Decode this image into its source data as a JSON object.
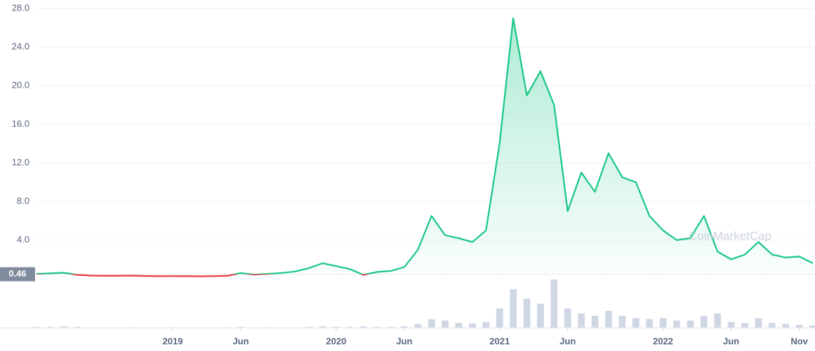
{
  "chart_data": {
    "type": "line",
    "x": [
      "2018-03",
      "2018-04",
      "2018-05",
      "2018-06",
      "2018-07",
      "2018-08",
      "2018-09",
      "2018-10",
      "2018-11",
      "2018-12",
      "2019-01",
      "2019-02",
      "2019-03",
      "2019-04",
      "2019-05",
      "2019-06",
      "2019-07",
      "2019-08",
      "2019-09",
      "2019-10",
      "2019-11",
      "2019-12",
      "2020-01",
      "2020-02",
      "2020-03",
      "2020-04",
      "2020-05",
      "2020-06",
      "2020-07",
      "2020-08",
      "2020-09",
      "2020-10",
      "2020-11",
      "2020-12",
      "2021-01",
      "2021-02",
      "2021-03",
      "2021-04",
      "2021-05",
      "2021-06",
      "2021-07",
      "2021-08",
      "2021-09",
      "2021-10",
      "2021-11",
      "2021-12",
      "2022-01",
      "2022-02",
      "2022-03",
      "2022-04",
      "2022-05",
      "2022-06",
      "2022-07",
      "2022-08",
      "2022-09",
      "2022-10",
      "2022-11",
      "2022-12"
    ],
    "values": [
      0.5,
      0.55,
      0.62,
      0.4,
      0.32,
      0.3,
      0.3,
      0.32,
      0.28,
      0.26,
      0.27,
      0.26,
      0.25,
      0.27,
      0.3,
      0.58,
      0.42,
      0.5,
      0.6,
      0.75,
      1.1,
      1.6,
      1.3,
      1.0,
      0.4,
      0.7,
      0.8,
      1.2,
      3.0,
      6.5,
      4.5,
      4.2,
      3.8,
      5.0,
      14.0,
      27.0,
      19.0,
      21.5,
      18.0,
      7.0,
      11.0,
      9.0,
      13.0,
      10.5,
      10.0,
      6.5,
      5.0,
      4.0,
      4.2,
      6.5,
      2.8,
      2.0,
      2.5,
      3.8,
      2.5,
      2.2,
      2.3,
      1.6
    ],
    "color": "#16c784",
    "down_color": "#ea3943",
    "baseline": 0.46,
    "volume": [
      2,
      2,
      3,
      2,
      1,
      1,
      1,
      1,
      1,
      1,
      1,
      1,
      1,
      1,
      1,
      2,
      1,
      1,
      1,
      1,
      2,
      3,
      2,
      2,
      3,
      2,
      2,
      3,
      8,
      18,
      15,
      10,
      9,
      12,
      40,
      80,
      60,
      50,
      100,
      40,
      30,
      25,
      35,
      25,
      20,
      18,
      20,
      15,
      15,
      25,
      30,
      12,
      10,
      20,
      10,
      8,
      6,
      5
    ],
    "volume_color": "#cfd6e4",
    "y2lim": [
      0,
      100
    ],
    "xlim": [
      "2018-03",
      "2022-12"
    ],
    "xticks": [
      {
        "value": "2019-01",
        "label": "2019"
      },
      {
        "value": "2019-06",
        "label": "Jun"
      },
      {
        "value": "2020-01",
        "label": "2020"
      },
      {
        "value": "2020-06",
        "label": "Jun"
      },
      {
        "value": "2021-01",
        "label": "2021"
      },
      {
        "value": "2021-06",
        "label": "Jun"
      },
      {
        "value": "2022-01",
        "label": "2022"
      },
      {
        "value": "2022-06",
        "label": "Jun"
      },
      {
        "value": "2022-11",
        "label": "Nov"
      }
    ],
    "ylim": [
      0,
      28
    ],
    "yticks": [
      {
        "value": 4,
        "label": "4.0"
      },
      {
        "value": 8,
        "label": "8.0"
      },
      {
        "value": 12,
        "label": "12.0"
      },
      {
        "value": 16,
        "label": "16.0"
      },
      {
        "value": 20,
        "label": "20.0"
      },
      {
        "value": 24,
        "label": "24.0"
      },
      {
        "value": 28,
        "label": "28.0"
      }
    ],
    "grid": true,
    "watermark": "CoinMarketCap"
  }
}
